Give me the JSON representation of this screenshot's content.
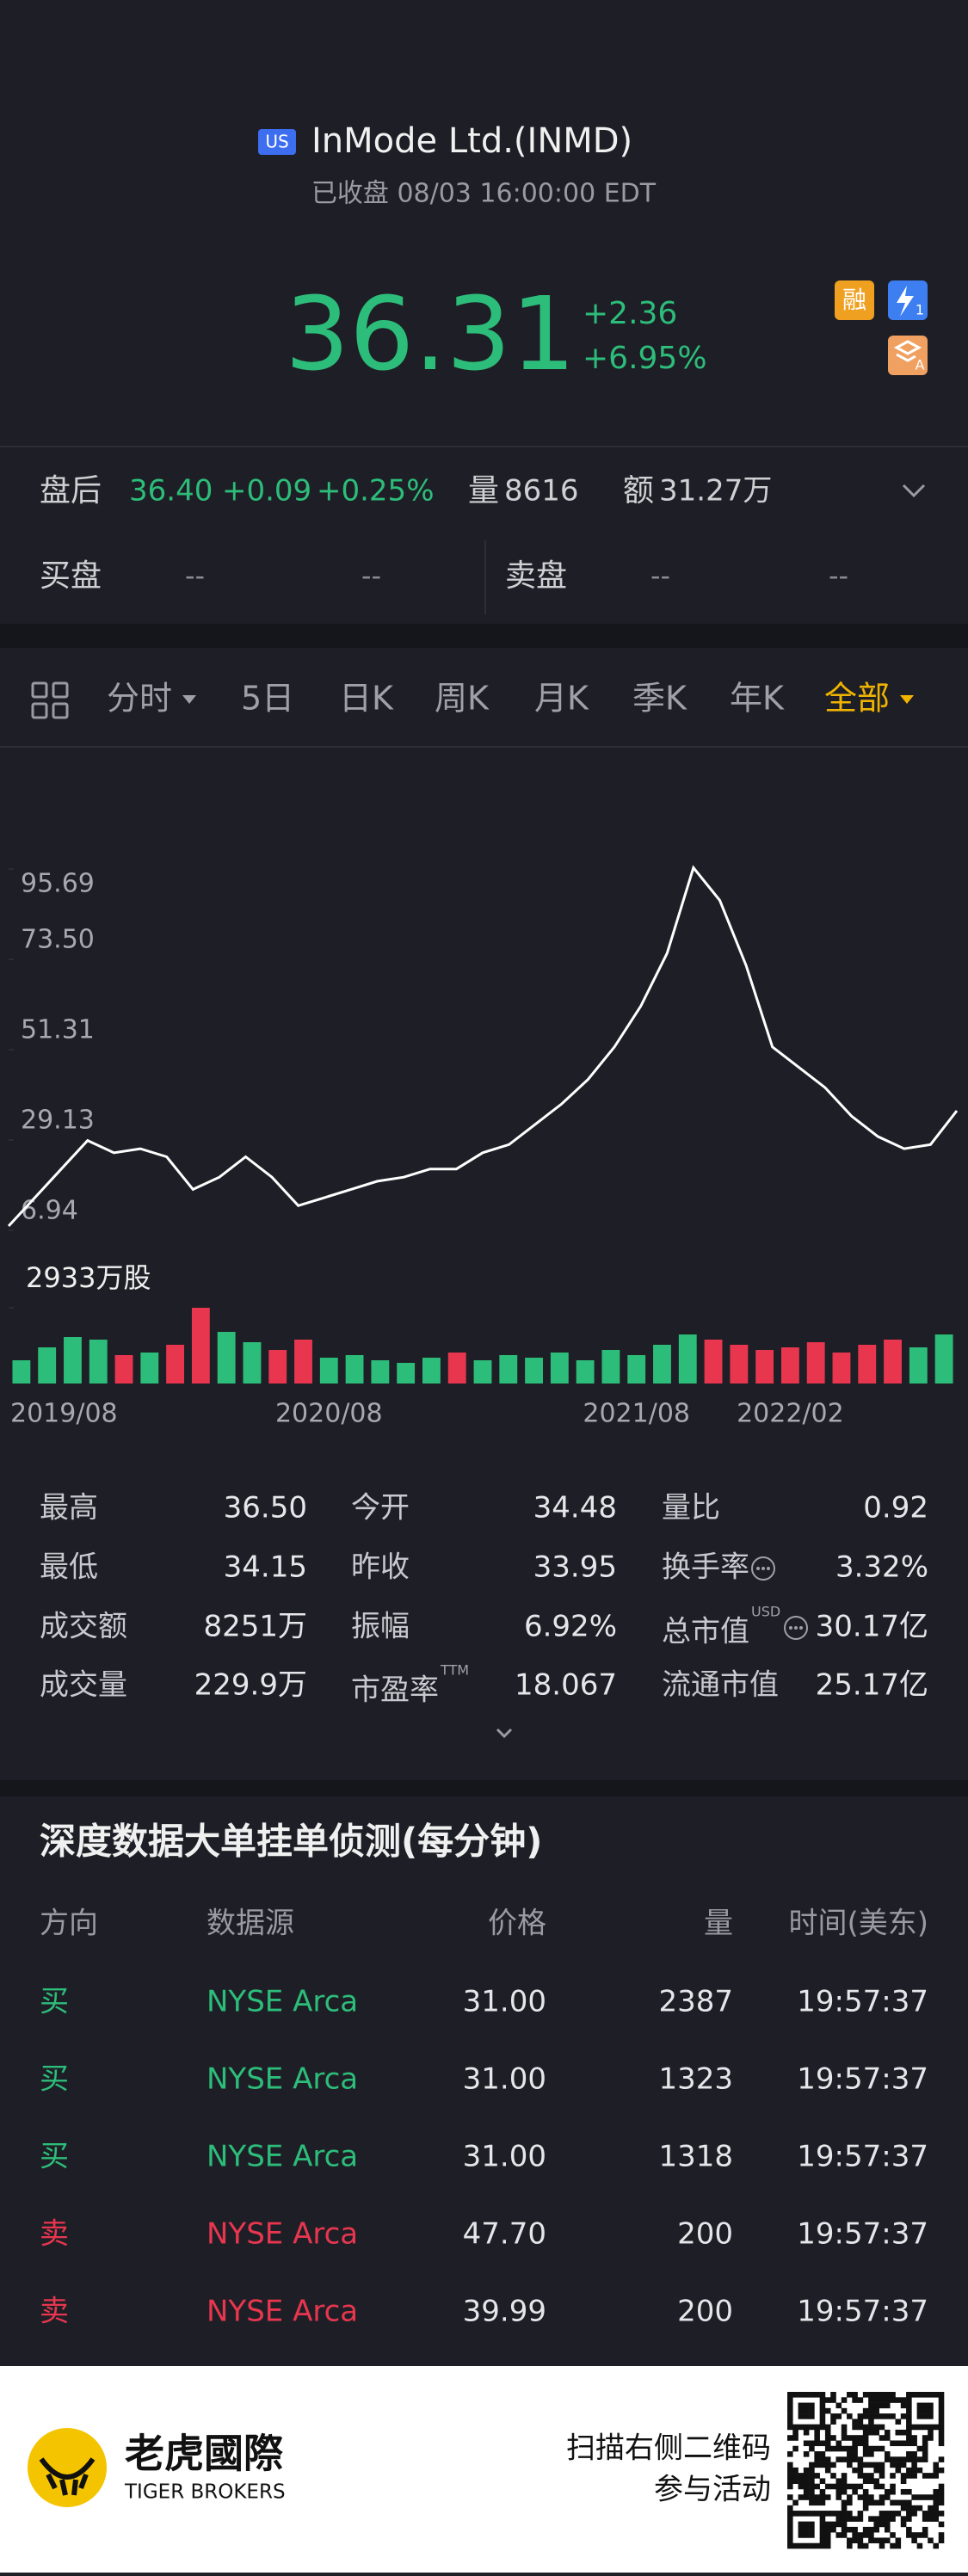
{
  "header": {
    "badge": "US",
    "title": "InMode Ltd.(INMD)",
    "status": "已收盘 08/03 16:00:00 EDT"
  },
  "quote": {
    "price": "36.31",
    "change": "+2.36",
    "change_pct": "+6.95%",
    "icons": [
      "融",
      "1",
      "A"
    ]
  },
  "after_hours": {
    "label": "盘后",
    "price": "36.40",
    "change": "+0.09",
    "change_pct": "+0.25%",
    "volume_label": "量",
    "volume": "8616",
    "amount_label": "额",
    "amount": "31.27万"
  },
  "bid_ask": {
    "bid_label": "买盘",
    "bid_price": "--",
    "bid_size": "--",
    "ask_label": "卖盘",
    "ask_price": "--",
    "ask_size": "--"
  },
  "tabs": {
    "items": [
      "分时",
      "5日",
      "日K",
      "周K",
      "月K",
      "季K",
      "年K",
      "全部"
    ],
    "active": 7
  },
  "chart_data": [
    {
      "type": "line",
      "color": "#ffffff",
      "values": [
        8,
        15,
        22,
        29,
        26,
        27,
        25,
        17,
        20,
        25,
        20,
        13,
        15,
        17,
        19,
        20,
        22,
        22,
        26,
        28,
        33,
        38,
        44,
        52,
        62,
        75,
        96,
        88,
        72,
        52,
        47,
        42,
        35,
        30,
        27,
        28,
        36.31
      ],
      "ylim": [
        6.94,
        95.69
      ],
      "yticks": [
        95.69,
        {
          "value": 73.5,
          "label": "73.50"
        },
        51.31,
        29.13,
        6.94
      ]
    },
    {
      "type": "bar",
      "categories": [
        "2019/08",
        null,
        null,
        null,
        null,
        null,
        null,
        null,
        null,
        null,
        null,
        null,
        "2020/08",
        null,
        null,
        null,
        null,
        null,
        null,
        null,
        null,
        null,
        null,
        null,
        "2021/08",
        null,
        null,
        null,
        null,
        null,
        "2022/02",
        null,
        null,
        null,
        null,
        null,
        null
      ],
      "values": [
        900,
        1400,
        1800,
        1700,
        1100,
        1200,
        1500,
        2933,
        2000,
        1600,
        1300,
        1700,
        1000,
        1100,
        900,
        800,
        1000,
        1200,
        900,
        1100,
        1000,
        1200,
        900,
        1300,
        1100,
        1500,
        1900,
        1700,
        1500,
        1300,
        1400,
        1600,
        1200,
        1500,
        1700,
        1400,
        1900
      ],
      "colors": [
        "#2dbd7a",
        "#2dbd7a",
        "#2dbd7a",
        "#2dbd7a",
        "#e8364f",
        "#2dbd7a",
        "#e8364f",
        "#e8364f",
        "#2dbd7a",
        "#2dbd7a",
        "#e8364f",
        "#e8364f",
        "#2dbd7a",
        "#2dbd7a",
        "#2dbd7a",
        "#2dbd7a",
        "#2dbd7a",
        "#e8364f",
        "#2dbd7a",
        "#2dbd7a",
        "#2dbd7a",
        "#2dbd7a",
        "#2dbd7a",
        "#2dbd7a",
        "#2dbd7a",
        "#2dbd7a",
        "#2dbd7a",
        "#e8364f",
        "#e8364f",
        "#e8364f",
        "#e8364f",
        "#e8364f",
        "#e8364f",
        "#e8364f",
        "#e8364f",
        "#2dbd7a",
        "#2dbd7a"
      ],
      "ylim": [
        0,
        2933
      ],
      "yticks": [
        {
          "value": 2933,
          "label": "2933万股"
        }
      ]
    }
  ],
  "stats": {
    "rows": [
      [
        {
          "label": "最高",
          "value": "36.50"
        },
        {
          "label": "今开",
          "value": "34.48"
        },
        {
          "label": "量比",
          "value": "0.92"
        }
      ],
      [
        {
          "label": "最低",
          "value": "34.15"
        },
        {
          "label": "昨收",
          "value": "33.95"
        },
        {
          "label": "换手率",
          "value": "3.32%",
          "info_icon": true
        }
      ],
      [
        {
          "label": "成交额",
          "value": "8251万"
        },
        {
          "label": "振幅",
          "value": "6.92%"
        },
        {
          "label": "总市值",
          "sup": "USD",
          "value": "30.17亿",
          "info_icon": true
        }
      ],
      [
        {
          "label": "成交量",
          "value": "229.9万"
        },
        {
          "label": "市盈率",
          "sup": "TTM",
          "value": "18.067"
        },
        {
          "label": "流通市值",
          "value": "25.17亿"
        }
      ]
    ]
  },
  "orders": {
    "title": "深度数据大单挂单侦测(每分钟)",
    "columns": [
      "方向",
      "数据源",
      "价格",
      "量",
      "时间(美东)"
    ],
    "rows": [
      {
        "color": "#2dbd7a",
        "cells": [
          "买",
          "NYSE Arca",
          "31.00",
          "2387",
          "19:57:37"
        ]
      },
      {
        "color": "#2dbd7a",
        "cells": [
          "买",
          "NYSE Arca",
          "31.00",
          "1323",
          "19:57:37"
        ]
      },
      {
        "color": "#2dbd7a",
        "cells": [
          "买",
          "NYSE Arca",
          "31.00",
          "1318",
          "19:57:37"
        ]
      },
      {
        "color": "#e8364f",
        "cells": [
          "卖",
          "NYSE Arca",
          "47.70",
          "200",
          "19:57:37"
        ]
      },
      {
        "color": "#e8364f",
        "cells": [
          "卖",
          "NYSE Arca",
          "39.99",
          "200",
          "19:57:37"
        ]
      }
    ]
  },
  "footer": {
    "brand_cn": "老虎國際",
    "brand_en": "TIGER BROKERS",
    "cta": [
      "扫描右侧二维码",
      "参与活动"
    ]
  }
}
